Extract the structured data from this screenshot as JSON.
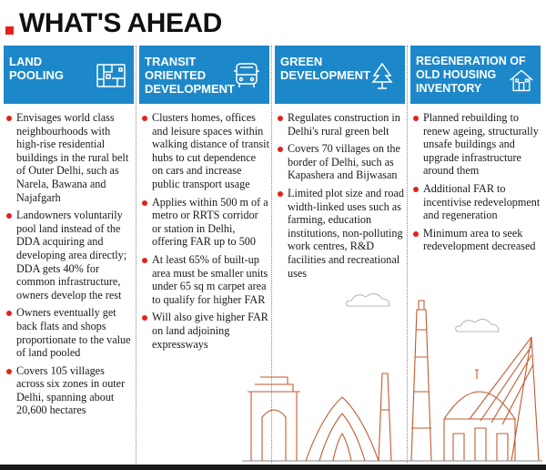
{
  "title": "WHAT'S AHEAD",
  "accent_color": "#e2231a",
  "header_color": "#1d88c9",
  "columns": [
    {
      "heading": "LAND POOLING",
      "icon": "map-icon",
      "bullets": [
        "Envisages world class neighbourhoods with high-rise residential buildings in the rural belt of Outer Delhi, such as Narela, Bawana and Najafgarh",
        "Landowners voluntarily pool land instead of the DDA acquiring and developing area directly; DDA gets 40% for common infrastructure, owners develop the rest",
        "Owners eventually get back flats and shops proportionate to the value of land pooled",
        "Covers 105 villages across six zones in outer Delhi, spanning about 20,600 hectares"
      ]
    },
    {
      "heading": "TRANSIT ORIENTED DEVELOPMENT",
      "icon": "bus-icon",
      "bullets": [
        "Clusters homes, offices and leisure spaces within walking distance of transit hubs to cut dependence on cars and increase public transport usage",
        "Applies within 500 m of a metro or RRTS corridor or station in Delhi, offering FAR up to 500",
        "At least 65% of built-up area must be smaller units under 65 sq m carpet area to qualify for higher FAR",
        "Will also give higher FAR on land adjoining expressways"
      ]
    },
    {
      "heading": "GREEN DEVELOPMENT",
      "icon": "tree-icon",
      "bullets": [
        "Regulates construction in Delhi's rural green belt",
        "Covers 70 villages on the border of Delhi, such as Kapashera and Bijwasan",
        "Limited plot size and road width-linked uses such as farming, education institutions, non-polluting work centres, R&D facilities and recreational uses"
      ]
    },
    {
      "heading": "REGENERATION OF OLD HOUSING INVENTORY",
      "icon": "house-icon",
      "bullets": [
        "Planned rebuilding to renew ageing, structurally unsafe buildings and upgrade infrastructure around them",
        "Additional FAR to incentivise redevelopment and regeneration",
        "Minimum area to seek redevelopment decreased"
      ]
    }
  ]
}
